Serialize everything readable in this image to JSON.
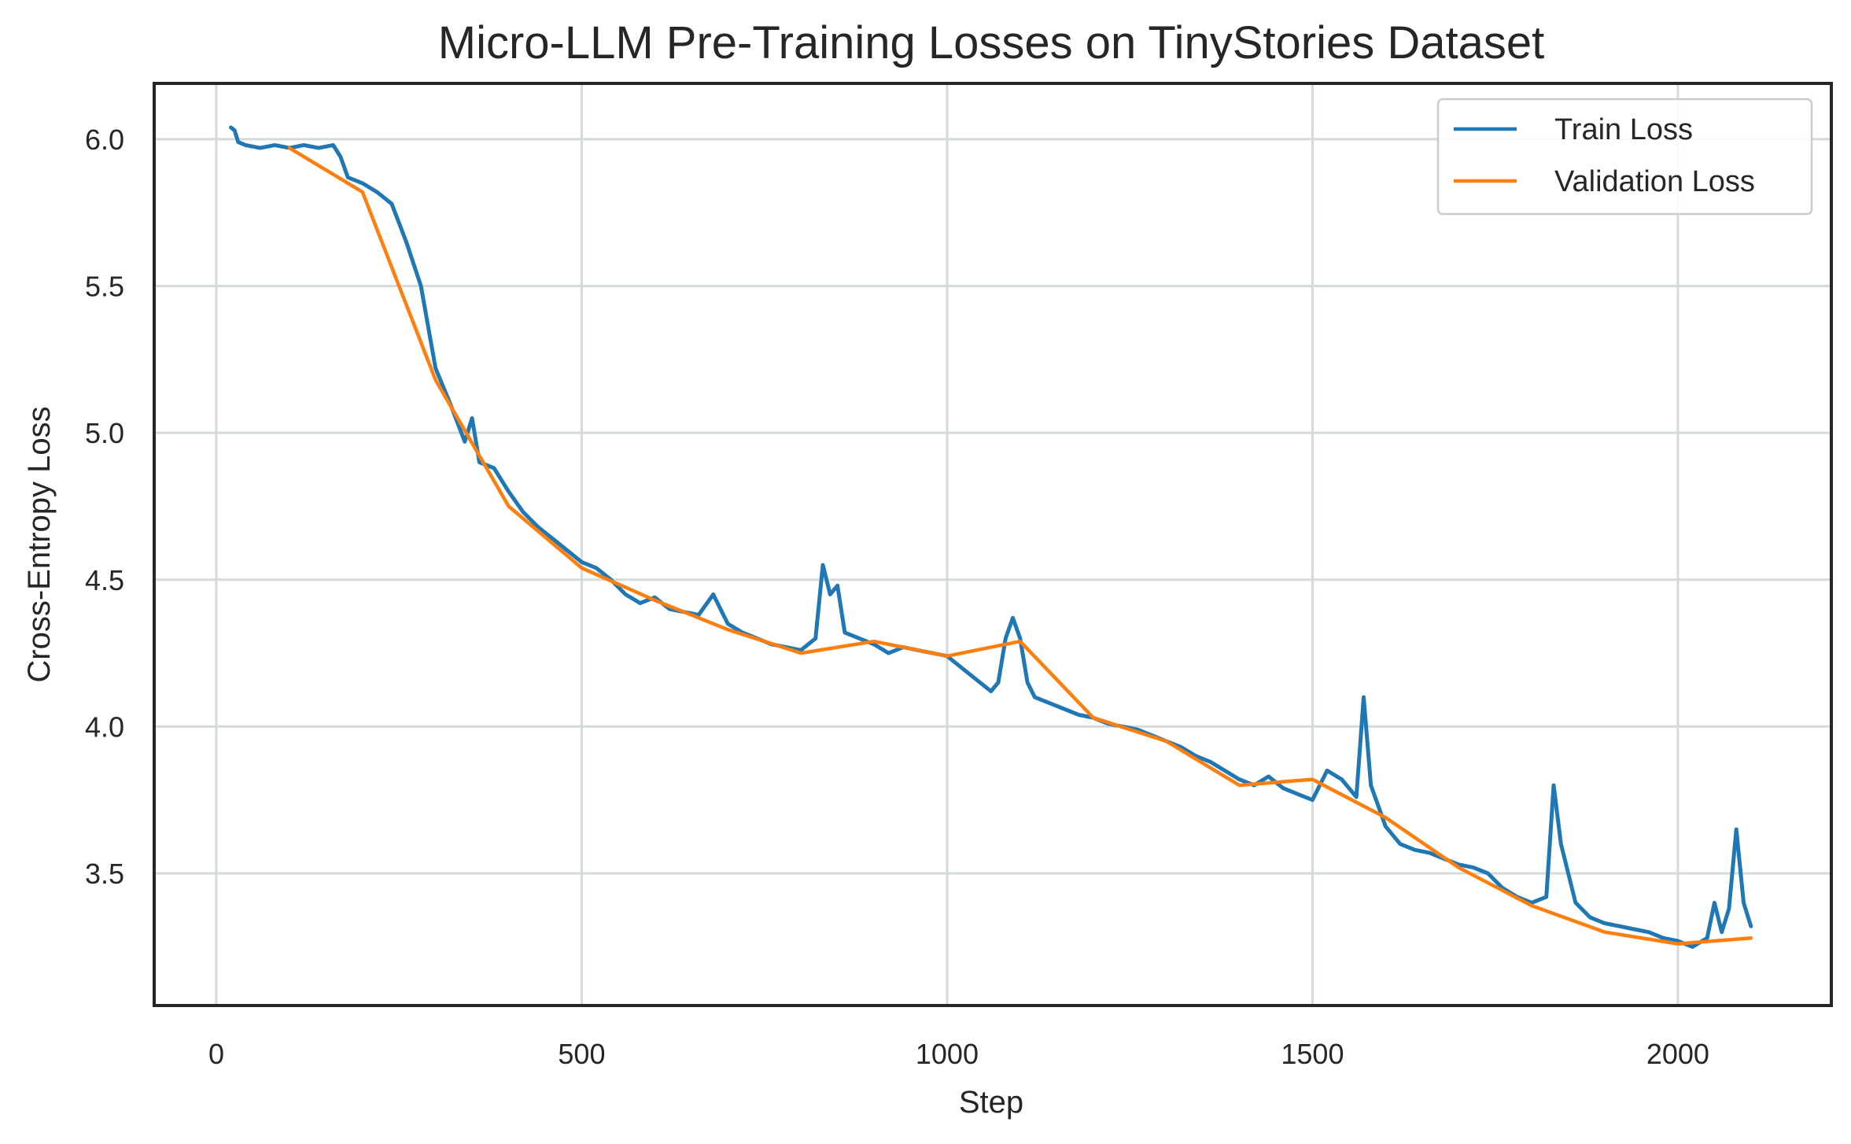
{
  "chart_data": {
    "type": "line",
    "title": "Micro-LLM Pre-Training Losses on TinyStories Dataset",
    "xlabel": "Step",
    "ylabel": "Cross-Entropy Loss",
    "xlim": [
      -85,
      2210
    ],
    "ylim": [
      3.05,
      6.19
    ],
    "xticks": [
      0,
      500,
      1000,
      1500,
      2000
    ],
    "yticks": [
      3.5,
      4.0,
      4.5,
      5.0,
      5.5,
      6.0
    ],
    "xtick_labels": [
      "0",
      "500",
      "1000",
      "1500",
      "2000"
    ],
    "ytick_labels": [
      "3.5",
      "4.0",
      "4.5",
      "5.0",
      "5.5",
      "6.0"
    ],
    "grid": true,
    "legend": "top-right",
    "colors": {
      "train": "#1f77b4",
      "validation": "#ff7f0e",
      "axes": "#262626",
      "grid": "#d5dadd"
    },
    "series": [
      {
        "name": "Train Loss",
        "x": [
          20,
          25,
          30,
          40,
          60,
          80,
          100,
          120,
          140,
          160,
          170,
          180,
          200,
          220,
          240,
          260,
          280,
          300,
          320,
          340,
          350,
          360,
          380,
          400,
          420,
          440,
          460,
          480,
          500,
          520,
          540,
          560,
          580,
          600,
          620,
          640,
          660,
          680,
          700,
          720,
          740,
          760,
          780,
          800,
          820,
          830,
          840,
          850,
          860,
          880,
          900,
          920,
          940,
          960,
          980,
          1000,
          1020,
          1040,
          1060,
          1070,
          1080,
          1090,
          1100,
          1110,
          1120,
          1140,
          1160,
          1180,
          1200,
          1220,
          1240,
          1260,
          1280,
          1300,
          1320,
          1340,
          1360,
          1380,
          1400,
          1420,
          1440,
          1460,
          1480,
          1500,
          1520,
          1540,
          1560,
          1570,
          1580,
          1600,
          1620,
          1640,
          1660,
          1680,
          1700,
          1720,
          1740,
          1760,
          1780,
          1800,
          1820,
          1830,
          1840,
          1860,
          1880,
          1900,
          1920,
          1940,
          1960,
          1980,
          2000,
          2020,
          2040,
          2050,
          2060,
          2070,
          2080,
          2090,
          2100
        ],
        "y": [
          6.04,
          6.03,
          5.99,
          5.98,
          5.97,
          5.98,
          5.97,
          5.98,
          5.97,
          5.98,
          5.94,
          5.87,
          5.85,
          5.82,
          5.78,
          5.65,
          5.5,
          5.22,
          5.1,
          4.97,
          5.05,
          4.9,
          4.88,
          4.8,
          4.73,
          4.68,
          4.64,
          4.6,
          4.56,
          4.54,
          4.5,
          4.45,
          4.42,
          4.44,
          4.4,
          4.39,
          4.38,
          4.45,
          4.35,
          4.32,
          4.3,
          4.28,
          4.27,
          4.26,
          4.3,
          4.55,
          4.45,
          4.48,
          4.32,
          4.3,
          4.28,
          4.25,
          4.27,
          4.26,
          4.25,
          4.24,
          4.2,
          4.16,
          4.12,
          4.15,
          4.3,
          4.37,
          4.3,
          4.15,
          4.1,
          4.08,
          4.06,
          4.04,
          4.03,
          4.01,
          4.0,
          3.99,
          3.97,
          3.95,
          3.93,
          3.9,
          3.88,
          3.85,
          3.82,
          3.8,
          3.83,
          3.79,
          3.77,
          3.75,
          3.85,
          3.82,
          3.76,
          4.1,
          3.8,
          3.66,
          3.6,
          3.58,
          3.57,
          3.55,
          3.53,
          3.52,
          3.5,
          3.45,
          3.42,
          3.4,
          3.42,
          3.8,
          3.6,
          3.4,
          3.35,
          3.33,
          3.32,
          3.31,
          3.3,
          3.28,
          3.27,
          3.25,
          3.28,
          3.4,
          3.3,
          3.38,
          3.65,
          3.4,
          3.32
        ]
      },
      {
        "name": "Validation Loss",
        "x": [
          100,
          200,
          300,
          400,
          500,
          600,
          700,
          800,
          900,
          1000,
          1100,
          1200,
          1300,
          1400,
          1500,
          1600,
          1700,
          1800,
          1900,
          2000,
          2100
        ],
        "y": [
          5.97,
          5.82,
          5.18,
          4.75,
          4.54,
          4.43,
          4.33,
          4.25,
          4.29,
          4.24,
          4.29,
          4.03,
          3.95,
          3.8,
          3.82,
          3.69,
          3.52,
          3.39,
          3.3,
          3.26,
          3.28
        ]
      }
    ]
  }
}
